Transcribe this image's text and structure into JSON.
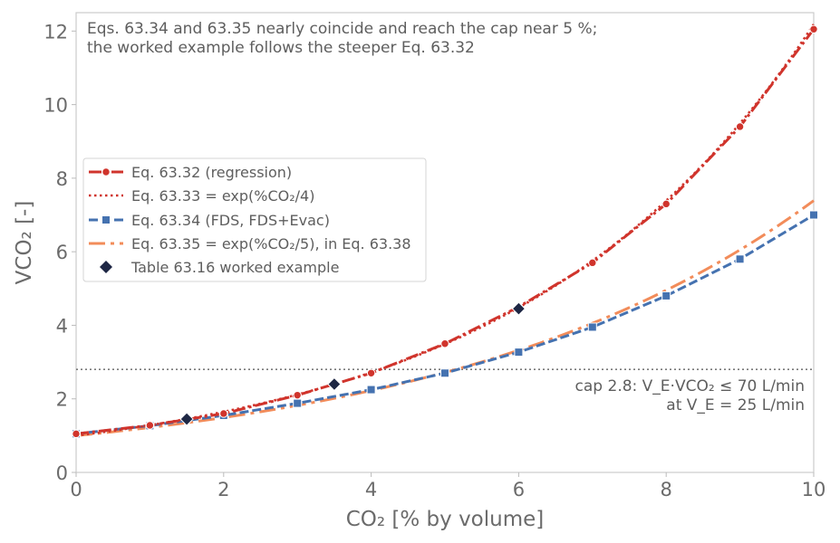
{
  "chart_data": {
    "type": "line",
    "title": "",
    "xlabel": "CO₂ [% by volume]",
    "ylabel": "VCO₂ [-]",
    "xlim": [
      0,
      10
    ],
    "ylim": [
      0,
      12.5
    ],
    "x_ticks": [
      "0",
      "2",
      "4",
      "6",
      "8",
      "10"
    ],
    "y_ticks": [
      "0",
      "2",
      "4",
      "6",
      "8",
      "10",
      "12"
    ],
    "grid": false,
    "legend_position": "center-left",
    "annotation": {
      "line1": "Eqs. 63.34 and 63.35 nearly coincide and reach the cap near 5 %;",
      "line2": "the worked example follows the steeper Eq. 63.32"
    },
    "cap": {
      "value": 2.8,
      "label_line1": "cap 2.8: V_E·VCO₂ ≤ 70 L/min",
      "label_line2": "at V_E = 25 L/min"
    },
    "series": [
      {
        "name": "Eq. 63.32 (regression)",
        "color": "#d0342c",
        "style": "dashdot-circle",
        "x": [
          0,
          1,
          2,
          3,
          4,
          5,
          6,
          7,
          8,
          9,
          10
        ],
        "y": [
          1.05,
          1.28,
          1.6,
          2.1,
          2.7,
          3.5,
          4.5,
          5.7,
          7.3,
          9.4,
          12.05
        ]
      },
      {
        "name": "Eq. 63.33 = exp(%CO₂/4)",
        "color": "#d0342c",
        "style": "dotted",
        "formula_divisor": 4
      },
      {
        "name": "Eq. 63.34 (FDS, FDS+Evac)",
        "color": "#4572b0",
        "style": "dashed-square",
        "x": [
          0,
          1,
          2,
          3,
          4,
          5,
          6,
          7,
          8,
          9,
          10
        ],
        "y": [
          1.05,
          1.27,
          1.55,
          1.88,
          2.25,
          2.7,
          3.27,
          3.95,
          4.8,
          5.8,
          7.0
        ]
      },
      {
        "name": "Eq. 63.35 = exp(%CO₂/5), in Eq. 63.38",
        "color": "#f28c5a",
        "style": "dashdot-long",
        "formula_divisor": 5
      }
    ],
    "worked_example": {
      "name": "Table 63.16 worked example",
      "color": "#1e2744",
      "x": [
        1.5,
        3.5,
        6
      ],
      "y": [
        1.45,
        2.4,
        4.45
      ]
    }
  }
}
